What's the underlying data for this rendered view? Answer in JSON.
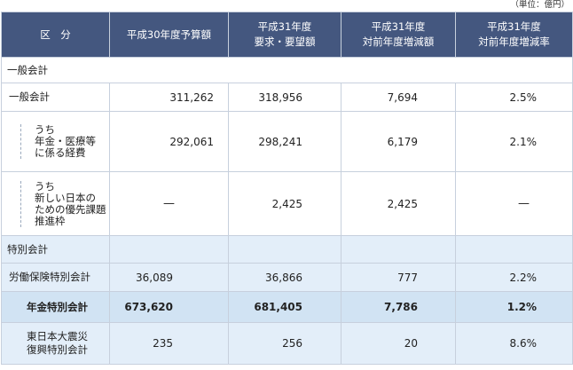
{
  "unit_note": "（単位：億円）",
  "headers": {
    "category": "区　分",
    "col1": "平成30年度予算額",
    "col2": "平成31年度\n要求・要望額",
    "col3": "平成31年度\n対前年度増減額",
    "col4": "平成31年度\n対前年度増減率"
  },
  "sections": {
    "general": "一般会計",
    "special": "特別会計"
  },
  "rows": {
    "general": {
      "label": "一般会計",
      "v1": "311,262",
      "v2": "318,956",
      "v3": "7,694",
      "v4": "2.5%"
    },
    "pension_medical": {
      "label": "うち\n年金・医療等\nに係る経費",
      "v1": "292,061",
      "v2": "298,241",
      "v3": "6,179",
      "v4": "2.1%"
    },
    "new_japan": {
      "label": "うち\n新しい日本の\nための優先課題\n推進枠",
      "v1": "—",
      "v2": "2,425",
      "v3": "2,425",
      "v4": "—"
    },
    "labor_insurance": {
      "label": "労働保険特別会計",
      "v1": "36,089",
      "v2": "36,866",
      "v3": "777",
      "v4": "2.2%"
    },
    "pension": {
      "label": "年金特別会計",
      "v1": "673,620",
      "v2": "681,405",
      "v3": "7,786",
      "v4": "1.2%"
    },
    "reconstruction": {
      "label": "東日本大震災\n復興特別会計",
      "v1": "235",
      "v2": "256",
      "v3": "20",
      "v4": "8.6%"
    }
  },
  "colors": {
    "header_bg": "#44577f",
    "special_bg": "#e3eef9",
    "pension_bg": "#d1e3f3",
    "border": "#c7d0dd"
  }
}
